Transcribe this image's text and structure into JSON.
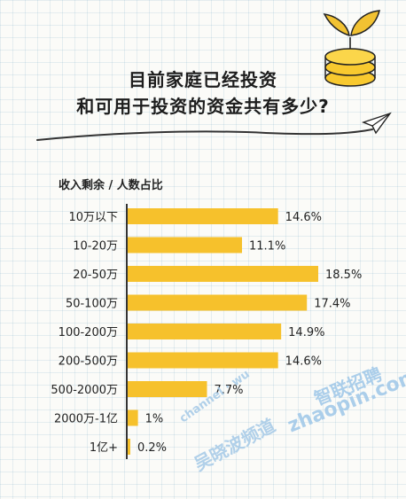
{
  "title_lines": [
    "目前家庭已经投资",
    "和可用于投资的资金共有多少?"
  ],
  "subtitle": "收入剩余 / 人数占比",
  "watermarks": {
    "channel": "channel · wu",
    "name": "吴晓波频道",
    "site": "智联招聘",
    "url": "zhaopin.com"
  },
  "colors": {
    "bar": "#f6c12c",
    "axis": "#333333",
    "coin": "#f8c92f",
    "leaf": "#f2c232",
    "watermark": "#9ec7e8"
  },
  "chart_data": {
    "type": "bar",
    "orientation": "horizontal",
    "title": "",
    "xlabel": "",
    "ylabel": "",
    "categories": [
      "10万以下",
      "10-20万",
      "20-50万",
      "50-100万",
      "100-200万",
      "200-500万",
      "500-2000万",
      "2000万-1亿",
      "1亿+"
    ],
    "values": [
      14.6,
      11.1,
      18.5,
      17.4,
      14.9,
      14.6,
      7.7,
      1,
      0.2
    ],
    "value_labels": [
      "14.6%",
      "11.1%",
      "18.5%",
      "17.4%",
      "14.9%",
      "14.6%",
      "7.7%",
      "1%",
      "0.2%"
    ],
    "unit": "%",
    "xlim": [
      0,
      18.5
    ],
    "grid": false,
    "legend": "none"
  }
}
